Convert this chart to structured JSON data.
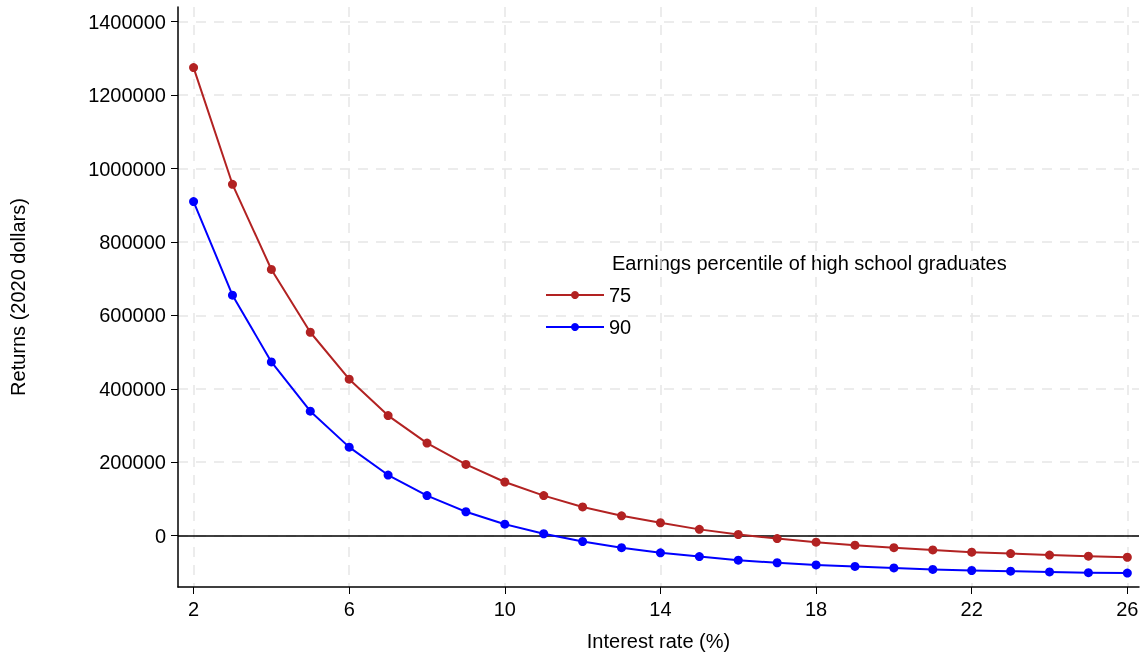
{
  "chart_data": {
    "type": "line",
    "xlabel": "Interest rate (%)",
    "ylabel": "Returns (2020 dollars)",
    "legend_title": "Earnings percentile of high school graduates",
    "x": [
      2,
      3,
      4,
      5,
      6,
      7,
      8,
      9,
      10,
      11,
      12,
      13,
      14,
      15,
      16,
      17,
      18,
      19,
      20,
      21,
      22,
      23,
      24,
      25,
      26
    ],
    "series": [
      {
        "name": "75",
        "color": "#b22222",
        "values": [
          1275000,
          957000,
          725000,
          554000,
          426000,
          327000,
          252000,
          194000,
          146000,
          109000,
          78000,
          54000,
          35000,
          17000,
          3000,
          -8000,
          -18000,
          -26000,
          -33000,
          -39000,
          -45000,
          -49000,
          -53000,
          -56000,
          -59000
        ]
      },
      {
        "name": "90",
        "color": "#0000ff",
        "values": [
          910000,
          655000,
          473000,
          339000,
          241000,
          165000,
          109000,
          65000,
          31000,
          5000,
          -16000,
          -33000,
          -47000,
          -57000,
          -67000,
          -74000,
          -80000,
          -84000,
          -88000,
          -92000,
          -95000,
          -97000,
          -99000,
          -101000,
          -102000
        ]
      }
    ],
    "xlim": [
      1.6,
      26.3
    ],
    "xticks": [
      2,
      6,
      10,
      14,
      18,
      22,
      26
    ],
    "ylim": [
      -140000,
      1440000
    ],
    "yticks": [
      0,
      200000,
      400000,
      600000,
      800000,
      1000000,
      1200000,
      1400000
    ],
    "ref_lines": [
      {
        "axis": "y",
        "value": 0,
        "color": "#000000"
      }
    ],
    "grid": true,
    "legend": "center",
    "marker": "circle",
    "line_style": "solid"
  }
}
